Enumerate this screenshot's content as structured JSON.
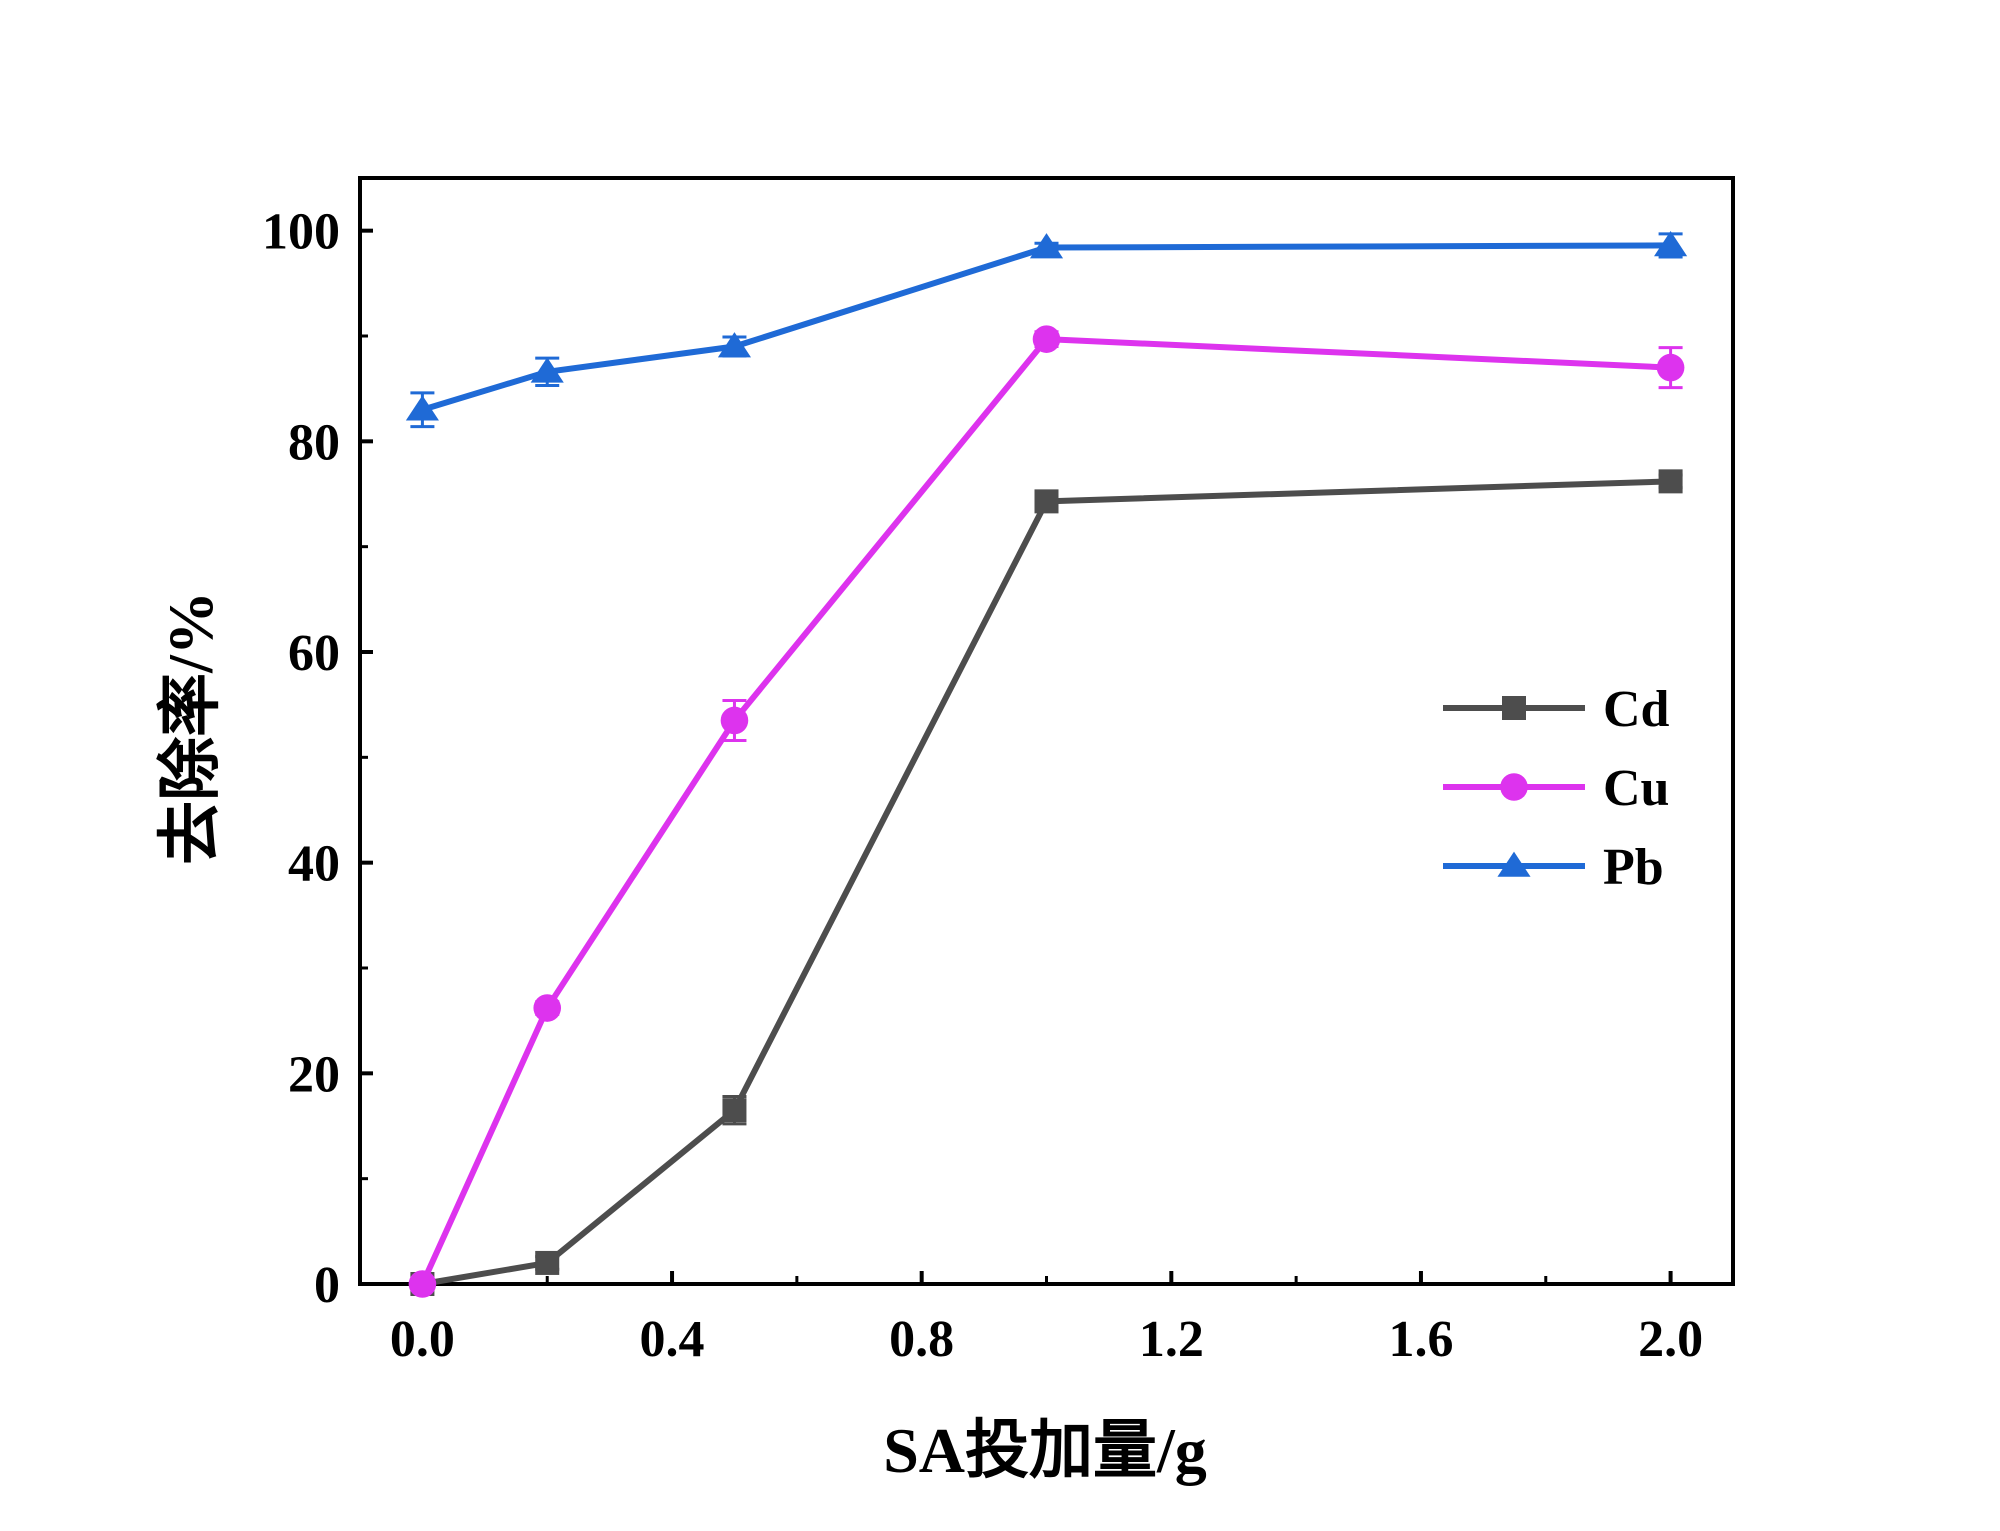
{
  "chart_data": {
    "type": "line",
    "title": "",
    "xlabel": "SA投加量/g",
    "ylabel": "去除率/%",
    "xlim": [
      -0.1,
      2.1
    ],
    "ylim": [
      0,
      105
    ],
    "xticks": [
      0.0,
      0.4,
      0.8,
      1.2,
      1.6,
      2.0
    ],
    "xtick_labels": [
      "0.0",
      "0.4",
      "0.8",
      "1.2",
      "1.6",
      "2.0"
    ],
    "yticks": [
      0,
      20,
      40,
      60,
      80,
      100
    ],
    "ytick_labels": [
      "0",
      "20",
      "40",
      "60",
      "80",
      "100"
    ],
    "legend_position": "center-right",
    "grid": false,
    "series": [
      {
        "name": "Cd",
        "color": "#4d4d4d",
        "marker": "square",
        "x": [
          0.0,
          0.2,
          0.5,
          1.0,
          2.0
        ],
        "values": [
          0,
          2.0,
          16.5,
          74.3,
          76.2
        ],
        "errors": [
          0.3,
          0.6,
          1.3,
          0.8,
          0.6
        ]
      },
      {
        "name": "Cu",
        "color": "#dd33ee",
        "marker": "circle",
        "x": [
          0.0,
          0.2,
          0.5,
          1.0,
          2.0
        ],
        "values": [
          0,
          26.2,
          53.5,
          89.7,
          87.0
        ],
        "errors": [
          0.3,
          0.6,
          1.9,
          0.7,
          1.9
        ]
      },
      {
        "name": "Pb",
        "color": "#1f6ad6",
        "marker": "triangle",
        "x": [
          0.0,
          0.2,
          0.5,
          1.0,
          2.0
        ],
        "values": [
          83.0,
          86.6,
          89.0,
          98.4,
          98.6
        ],
        "errors": [
          1.6,
          1.3,
          0.9,
          0.4,
          1.1
        ]
      }
    ]
  }
}
